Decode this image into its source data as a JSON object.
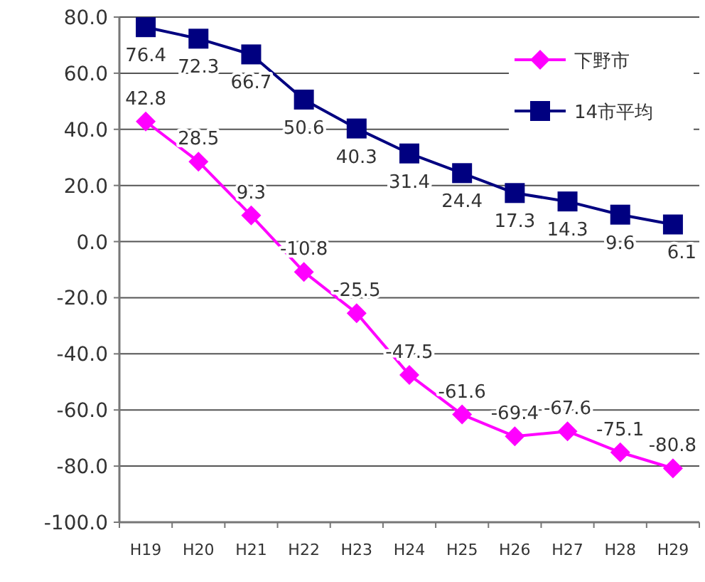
{
  "chart_data": {
    "type": "line",
    "categories": [
      "H19",
      "H20",
      "H21",
      "H22",
      "H23",
      "H24",
      "H25",
      "H26",
      "H27",
      "H28",
      "H29"
    ],
    "series": [
      {
        "name": "下野市",
        "color": "#ff00ff",
        "marker": "diamond",
        "values": [
          42.8,
          28.5,
          9.3,
          -10.8,
          -25.5,
          -47.5,
          -61.6,
          -69.4,
          -67.6,
          -75.1,
          -80.8
        ]
      },
      {
        "name": "14市平均",
        "color": "#000080",
        "marker": "square",
        "values": [
          76.4,
          72.3,
          66.7,
          50.6,
          40.3,
          31.4,
          24.4,
          17.3,
          14.3,
          9.6,
          6.1
        ]
      }
    ],
    "ylim": [
      -100,
      80
    ],
    "yticks": [
      {
        "value": -100,
        "label": "-100.0"
      },
      {
        "value": -80,
        "label": "-80.0"
      },
      {
        "value": -60,
        "label": "-60.0"
      },
      {
        "value": -40,
        "label": "-40.0"
      },
      {
        "value": -20,
        "label": "-20.0"
      },
      {
        "value": 0,
        "label": "0.0"
      },
      {
        "value": 20,
        "label": "20.0"
      },
      {
        "value": 40,
        "label": "40.0"
      },
      {
        "value": 60,
        "label": "60.0"
      },
      {
        "value": 80,
        "label": "80.0"
      }
    ],
    "grid": "y",
    "legend": "top right",
    "data_labels": true,
    "line_style": "solid"
  }
}
